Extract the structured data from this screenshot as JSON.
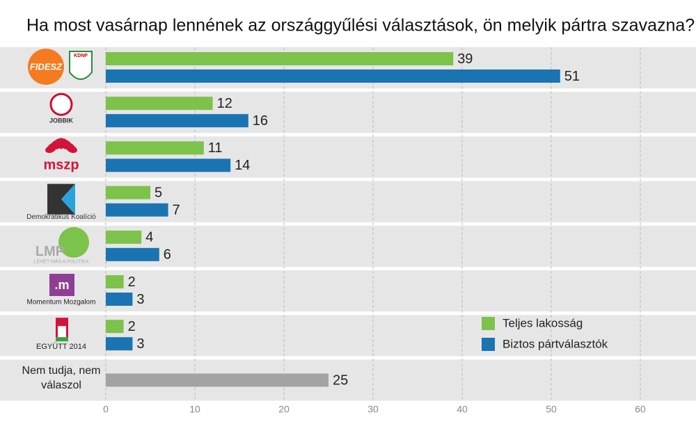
{
  "chart_data": {
    "type": "bar",
    "orientation": "horizontal",
    "title": "Ha most vasárnap lennének az országgyűlési választások, ön melyik pártra szavazna?",
    "categories": [
      "FIDESZ",
      "JOBBIK",
      "mszp",
      "Demokratikus Koalíció",
      "LMP",
      "Momentum Mozgalom",
      "EGYÜTT 2014",
      "Nem tudja, nem válaszol"
    ],
    "logo_texts": [
      "KDNP",
      null,
      null,
      null,
      "LEHET MÁS A POLITIKA",
      ".m",
      null,
      null
    ],
    "series": [
      {
        "name": "Teljes lakosság",
        "color": "#7dc24b",
        "values": [
          39,
          12,
          11,
          5,
          4,
          2,
          2,
          null
        ]
      },
      {
        "name": "Biztos pártválasztók",
        "color": "#1a74b2",
        "values": [
          51,
          16,
          14,
          7,
          6,
          3,
          3,
          null
        ]
      }
    ],
    "undecided": {
      "values": [
        null,
        null,
        null,
        null,
        null,
        null,
        null,
        25
      ],
      "color": "#a3a3a3"
    },
    "xlim": [
      0,
      60
    ],
    "xticks": [
      0,
      10,
      20,
      30,
      40,
      50,
      60
    ],
    "grid": true,
    "legend": "lower right"
  }
}
